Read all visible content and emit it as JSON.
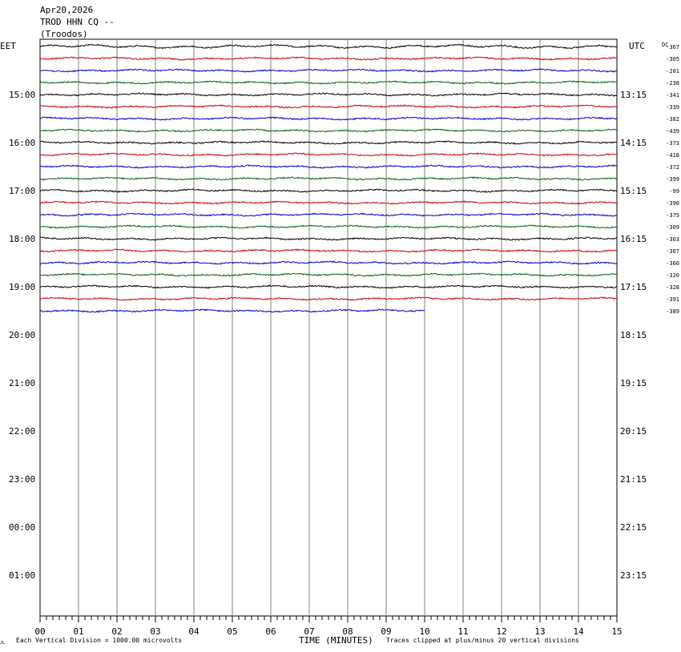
{
  "header": {
    "date": "Apr20,2026",
    "station": "TROD HHN CQ --",
    "location": "(Troodos)"
  },
  "left_tz": "EET",
  "right_tz": "UTC",
  "dc_label": "DC",
  "footer": {
    "scale_note": "Each Vertical Division = 1000.00 microvolts",
    "x_title": "TIME (MINUTES)",
    "clip_note": "Traces clipped at plus/minus 20 vertical divisions",
    "corner_mark": "JL"
  },
  "colors": {
    "trace_cycle": [
      "#000000",
      "#cc0000",
      "#0000cc",
      "#006600"
    ],
    "grid": "#808080",
    "frame": "#000000"
  },
  "chart_data": {
    "type": "line",
    "x_ticks": [
      "00",
      "01",
      "02",
      "03",
      "04",
      "05",
      "06",
      "07",
      "08",
      "09",
      "10",
      "11",
      "12",
      "13",
      "14",
      "15"
    ],
    "xlim": [
      0,
      15
    ],
    "left_hour_labels": [
      "15:00",
      "16:00",
      "17:00",
      "18:00",
      "19:00",
      "20:00",
      "21:00",
      "22:00",
      "23:00",
      "00:00",
      "01:00"
    ],
    "right_hour_labels": [
      "13:15",
      "14:15",
      "15:15",
      "16:15",
      "17:15",
      "18:15",
      "19:15",
      "20:15",
      "21:15",
      "22:15",
      "23:15"
    ],
    "trace_offsets": [
      -367,
      -305,
      -201,
      -238,
      -341,
      -339,
      -382,
      -439,
      -373,
      -418,
      -372,
      -399,
      -99,
      -390,
      -375,
      -309,
      -303,
      -307,
      -360,
      -320,
      -328,
      -391,
      -389
    ],
    "last_trace_end_minute": 10
  }
}
